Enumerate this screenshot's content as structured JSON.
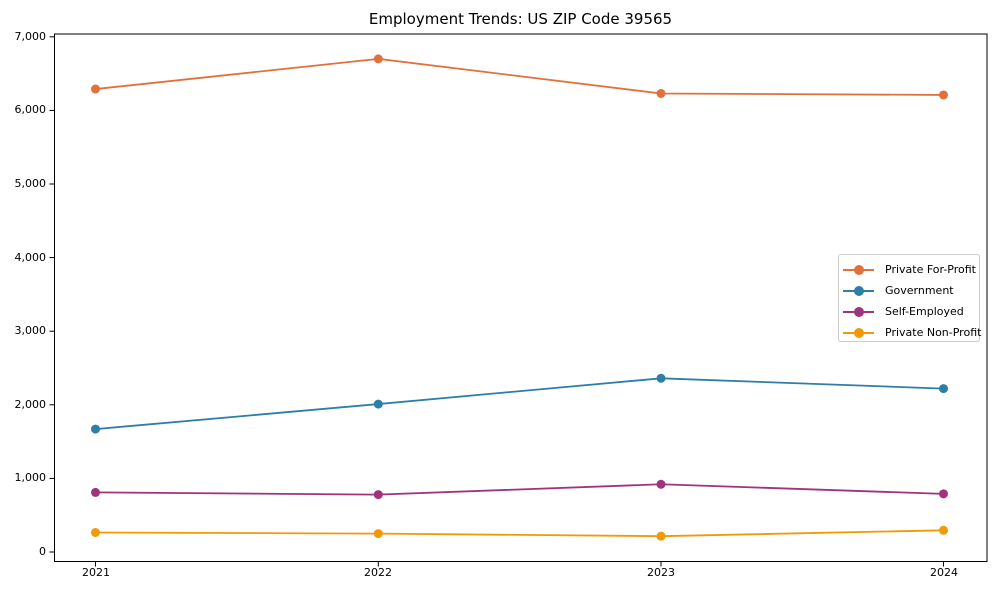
{
  "page": {
    "title": "Employment Trends: US ZIP Code 39565"
  },
  "chart_data": {
    "type": "line",
    "title": "Employment Trends: US ZIP Code 39565",
    "categories": [
      "2021",
      "2022",
      "2023",
      "2024"
    ],
    "series": [
      {
        "name": "Private For-Profit",
        "color": "#e0713d",
        "values": [
          6290,
          6700,
          6230,
          6210
        ]
      },
      {
        "name": "Government",
        "color": "#2d7fa7",
        "values": [
          1670,
          2010,
          2360,
          2220
        ]
      },
      {
        "name": "Self-Employed",
        "color": "#a1327e",
        "values": [
          810,
          780,
          920,
          790
        ]
      },
      {
        "name": "Private Non-Profit",
        "color": "#f09a08",
        "values": [
          265,
          250,
          215,
          295
        ]
      }
    ],
    "xlabel": "",
    "ylabel": "",
    "ylim": [
      0,
      7000
    ],
    "yticks": [
      0,
      1000,
      2000,
      3000,
      4000,
      5000,
      6000,
      7000
    ],
    "ytick_labels": [
      "0",
      "1,000",
      "2,000",
      "3,000",
      "4,000",
      "5,000",
      "6,000",
      "7,000"
    ],
    "grid": false,
    "legend_position": "center right",
    "marker": "circle"
  }
}
